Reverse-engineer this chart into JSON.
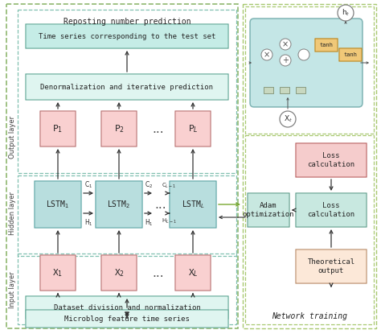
{
  "fig_width": 4.74,
  "fig_height": 4.15,
  "bg_color": "#ffffff",
  "colors": {
    "lstm_fill": "#b8dede",
    "lstm_edge": "#6aacac",
    "pink_fill": "#f9d0d0",
    "pink_edge": "#c08080",
    "teal_fill": "#c5ece6",
    "teal_edge": "#70b0a0",
    "light_teal_fill": "#dff5f0",
    "light_teal_edge": "#80bfb0",
    "section_fill": "#eefaf7",
    "dashed_green": "#90b870",
    "dashed_teal": "#80c0b0",
    "layer_text": "#404040",
    "text_dark": "#252525",
    "arrow_dark": "#333333",
    "arrow_green": "#78a830",
    "loss_pink_fill": "#f5cccc",
    "loss_pink_edge": "#c07070",
    "loss_cyan_fill": "#c8e8e0",
    "loss_cyan_edge": "#70a898",
    "adam_fill": "#c8e8e0",
    "adam_edge": "#70a898",
    "theor_fill": "#fce8d8",
    "theor_edge": "#c09878",
    "cell_fill": "#b0dede",
    "cell_edge": "#60a0a0",
    "tanh_fill": "#f0c878",
    "tanh_edge": "#c09030",
    "network_outer_fill": "#f5fce8",
    "network_outer_edge": "#a8c870"
  },
  "title_repost": "Reposting number prediction",
  "box_timeseries": "Time series corresponding to the test set",
  "box_denorm": "Denormalization and iterative prediction",
  "box_dataset": "Dataset division and normalization",
  "box_microblog": "Microblog feature time series",
  "network_title": "Network training",
  "loss_calc1": "Loss\ncalculation",
  "loss_calc2": "Loss\ncalculation",
  "adam_text": "Adam\noptimization",
  "theoretical_text": "Theoretical\noutput",
  "lstm_labels": [
    "LSTM$_1$",
    "LSTM$_2$",
    "LSTM$_L$"
  ],
  "p_labels": [
    "P$_1$",
    "P$_2$",
    "P$_L$"
  ],
  "x_labels": [
    "X$_1$",
    "X$_2$",
    "X$_L$"
  ]
}
